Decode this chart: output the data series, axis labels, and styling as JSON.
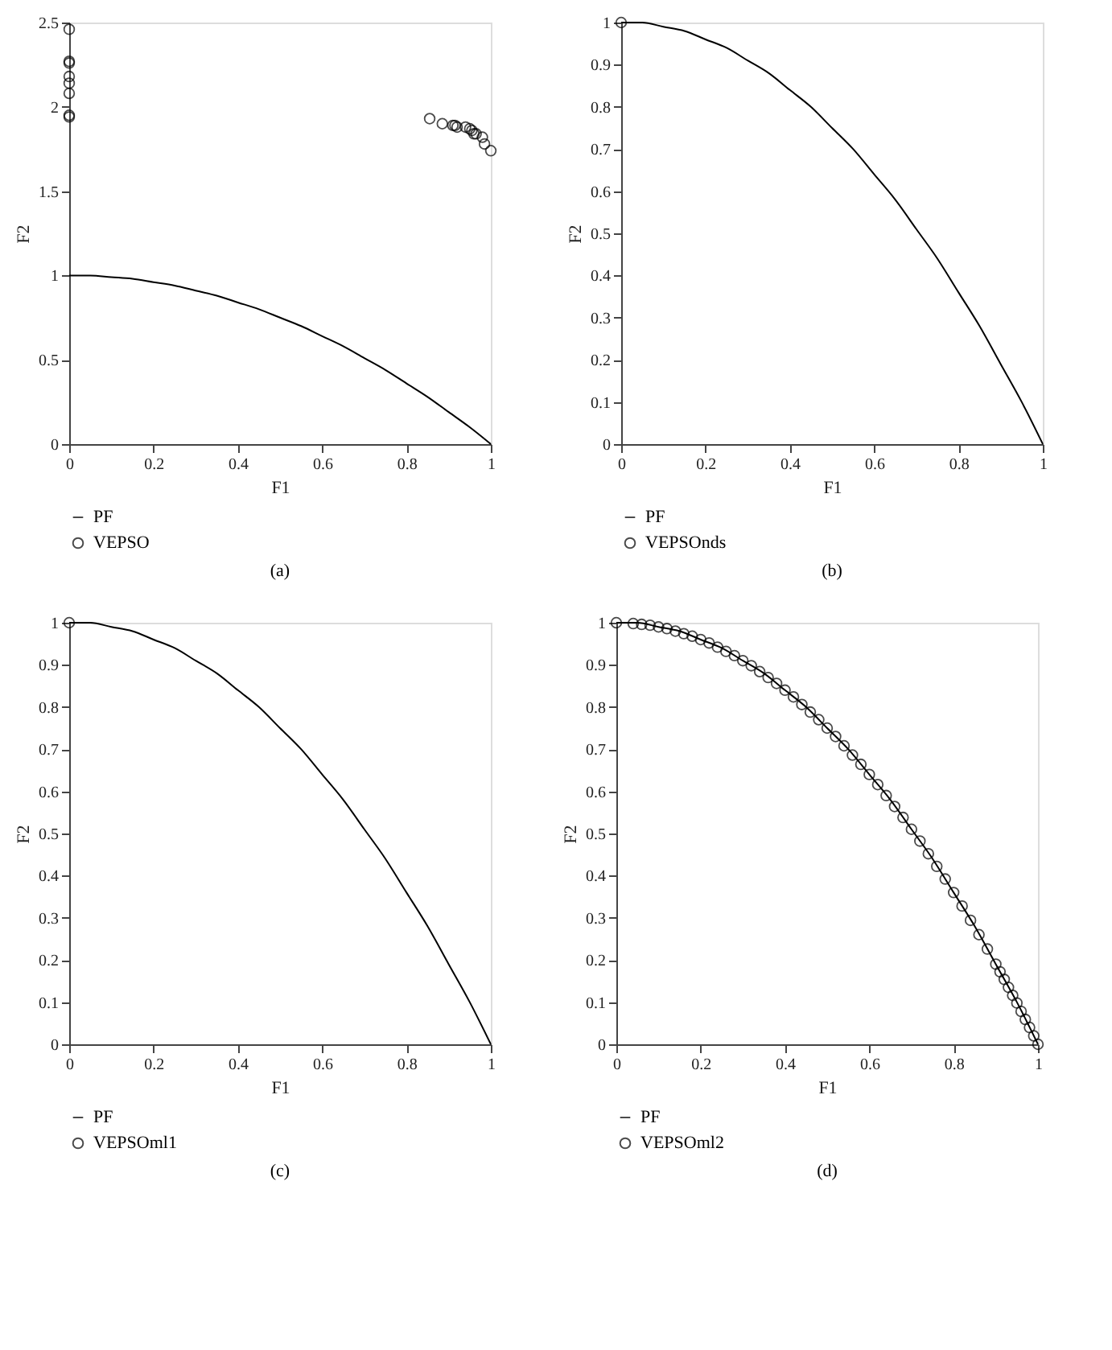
{
  "chart_data": [
    {
      "type": "scatter",
      "title": "(a)",
      "xlabel": "F1",
      "ylabel": "F2",
      "xlim": [
        0,
        1
      ],
      "xticks": [
        0,
        0.2,
        0.4,
        0.6,
        0.8,
        1
      ],
      "ylim": [
        0,
        2.5
      ],
      "yticks": [
        0,
        0.5,
        1,
        1.5,
        2,
        2.5
      ],
      "grid": false,
      "legend": "bottom left",
      "series": [
        {
          "name": "PF",
          "type": "line",
          "color": "#000000",
          "marker": "none",
          "x": [
            0,
            0.05,
            0.1,
            0.15,
            0.2,
            0.25,
            0.3,
            0.35,
            0.4,
            0.45,
            0.5,
            0.55,
            0.6,
            0.65,
            0.7,
            0.75,
            0.8,
            0.85,
            0.9,
            0.95,
            1
          ],
          "values": [
            1,
            1,
            0.99,
            0.98,
            0.96,
            0.94,
            0.91,
            0.88,
            0.84,
            0.8,
            0.75,
            0.7,
            0.64,
            0.58,
            0.51,
            0.44,
            0.36,
            0.28,
            0.19,
            0.1,
            0
          ]
        },
        {
          "name": "VEPSO",
          "color": "#000000",
          "marker": "circle",
          "x": [
            0,
            0,
            0,
            0,
            0,
            0,
            0,
            0,
            0.855,
            0.885,
            0.91,
            0.915,
            0.92,
            0.94,
            0.95,
            0.955,
            0.96,
            0.965,
            0.98,
            0.985,
            1
          ],
          "values": [
            2.46,
            2.27,
            2.26,
            2.18,
            2.14,
            2.08,
            1.95,
            1.94,
            1.93,
            1.9,
            1.89,
            1.89,
            1.88,
            1.88,
            1.87,
            1.86,
            1.84,
            1.84,
            1.82,
            1.78,
            1.74
          ]
        }
      ]
    },
    {
      "type": "scatter",
      "title": "(b)",
      "xlabel": "F1",
      "ylabel": "F2",
      "xlim": [
        0,
        1
      ],
      "xticks": [
        0,
        0.2,
        0.4,
        0.6,
        0.8,
        1
      ],
      "ylim": [
        0,
        1
      ],
      "yticks": [
        0,
        0.1,
        0.2,
        0.3,
        0.4,
        0.5,
        0.6,
        0.7,
        0.8,
        0.9,
        1
      ],
      "grid": false,
      "legend": "bottom left",
      "series": [
        {
          "name": "PF",
          "type": "line",
          "color": "#000000",
          "marker": "none",
          "x": [
            0,
            0.05,
            0.1,
            0.15,
            0.2,
            0.25,
            0.3,
            0.35,
            0.4,
            0.45,
            0.5,
            0.55,
            0.6,
            0.65,
            0.7,
            0.75,
            0.8,
            0.85,
            0.9,
            0.95,
            1
          ],
          "values": [
            1,
            1,
            0.99,
            0.98,
            0.96,
            0.94,
            0.91,
            0.88,
            0.84,
            0.8,
            0.75,
            0.7,
            0.64,
            0.58,
            0.51,
            0.44,
            0.36,
            0.28,
            0.19,
            0.1,
            0
          ]
        },
        {
          "name": "VEPSOnds",
          "color": "#000000",
          "marker": "circle",
          "x": [
            0
          ],
          "values": [
            1
          ]
        }
      ]
    },
    {
      "type": "scatter",
      "title": "(c)",
      "xlabel": "F1",
      "ylabel": "F2",
      "xlim": [
        0,
        1
      ],
      "xticks": [
        0,
        0.2,
        0.4,
        0.6,
        0.8,
        1
      ],
      "ylim": [
        0,
        1
      ],
      "yticks": [
        0,
        0.1,
        0.2,
        0.3,
        0.4,
        0.5,
        0.6,
        0.7,
        0.8,
        0.9,
        1
      ],
      "grid": false,
      "legend": "bottom left",
      "series": [
        {
          "name": "PF",
          "type": "line",
          "color": "#000000",
          "marker": "none",
          "x": [
            0,
            0.05,
            0.1,
            0.15,
            0.2,
            0.25,
            0.3,
            0.35,
            0.4,
            0.45,
            0.5,
            0.55,
            0.6,
            0.65,
            0.7,
            0.75,
            0.8,
            0.85,
            0.9,
            0.95,
            1
          ],
          "values": [
            1,
            1,
            0.99,
            0.98,
            0.96,
            0.94,
            0.91,
            0.88,
            0.84,
            0.8,
            0.75,
            0.7,
            0.64,
            0.58,
            0.51,
            0.44,
            0.36,
            0.28,
            0.19,
            0.1,
            0
          ]
        },
        {
          "name": "VEPSOml1",
          "color": "#000000",
          "marker": "circle",
          "x": [
            0
          ],
          "values": [
            1
          ]
        }
      ]
    },
    {
      "type": "scatter",
      "title": "(d)",
      "xlabel": "F1",
      "ylabel": "F2",
      "xlim": [
        0,
        1
      ],
      "xticks": [
        0,
        0.2,
        0.4,
        0.6,
        0.8,
        1
      ],
      "ylim": [
        0,
        1
      ],
      "yticks": [
        0,
        0.1,
        0.2,
        0.3,
        0.4,
        0.5,
        0.6,
        0.7,
        0.8,
        0.9,
        1
      ],
      "grid": false,
      "legend": "bottom left",
      "series": [
        {
          "name": "PF",
          "type": "line",
          "color": "#000000",
          "marker": "none",
          "x": [
            0,
            0.05,
            0.1,
            0.15,
            0.2,
            0.25,
            0.3,
            0.35,
            0.4,
            0.45,
            0.5,
            0.55,
            0.6,
            0.65,
            0.7,
            0.75,
            0.8,
            0.85,
            0.9,
            0.95,
            1
          ],
          "values": [
            1,
            1,
            0.99,
            0.98,
            0.96,
            0.94,
            0.91,
            0.88,
            0.84,
            0.8,
            0.75,
            0.7,
            0.64,
            0.58,
            0.51,
            0.44,
            0.36,
            0.28,
            0.19,
            0.1,
            0
          ]
        },
        {
          "name": "VEPSOml2",
          "color": "#000000",
          "marker": "circle",
          "x": [
            0,
            0.04,
            0.06,
            0.08,
            0.1,
            0.12,
            0.14,
            0.16,
            0.18,
            0.2,
            0.22,
            0.24,
            0.26,
            0.28,
            0.3,
            0.32,
            0.34,
            0.36,
            0.38,
            0.4,
            0.42,
            0.44,
            0.46,
            0.48,
            0.5,
            0.52,
            0.54,
            0.56,
            0.58,
            0.6,
            0.62,
            0.64,
            0.66,
            0.68,
            0.7,
            0.72,
            0.74,
            0.76,
            0.78,
            0.8,
            0.82,
            0.84,
            0.86,
            0.88,
            0.9,
            0.91,
            0.92,
            0.93,
            0.94,
            0.95,
            0.96,
            0.97,
            0.98,
            0.99,
            1
          ],
          "values": [
            1,
            0.998,
            0.996,
            0.994,
            0.99,
            0.986,
            0.98,
            0.974,
            0.968,
            0.96,
            0.952,
            0.942,
            0.932,
            0.922,
            0.91,
            0.898,
            0.884,
            0.87,
            0.856,
            0.84,
            0.824,
            0.806,
            0.788,
            0.77,
            0.75,
            0.73,
            0.708,
            0.686,
            0.664,
            0.64,
            0.616,
            0.59,
            0.564,
            0.538,
            0.51,
            0.482,
            0.452,
            0.422,
            0.392,
            0.36,
            0.328,
            0.294,
            0.26,
            0.226,
            0.19,
            0.172,
            0.154,
            0.135,
            0.116,
            0.098,
            0.078,
            0.059,
            0.04,
            0.02,
            0
          ]
        }
      ]
    }
  ]
}
